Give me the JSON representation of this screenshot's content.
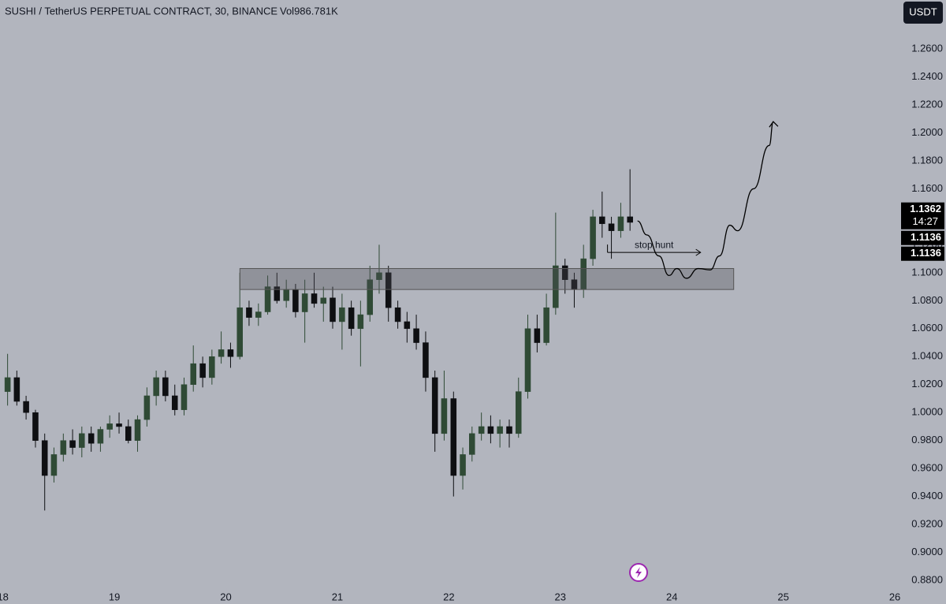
{
  "chart_data": {
    "type": "candlestick",
    "title": "SUSHI / TetherUS PERPETUAL CONTRACT, 30, BINANCE",
    "volume_label": "Vol986.781K",
    "currency": "USDT",
    "up_color": "#2f4a35",
    "down_color": "#0e0f12",
    "x": [
      18.042,
      18.125,
      18.208,
      18.292,
      18.375,
      18.458,
      18.542,
      18.625,
      18.708,
      18.792,
      18.875,
      18.958,
      19.042,
      19.125,
      19.208,
      19.292,
      19.375,
      19.458,
      19.542,
      19.625,
      19.708,
      19.792,
      19.875,
      19.958,
      20.042,
      20.125,
      20.208,
      20.292,
      20.375,
      20.458,
      20.542,
      20.625,
      20.708,
      20.792,
      20.875,
      20.958,
      21.042,
      21.125,
      21.208,
      21.292,
      21.375,
      21.458,
      21.542,
      21.625,
      21.708,
      21.792,
      21.875,
      21.958,
      22.042,
      22.125,
      22.208,
      22.292,
      22.375,
      22.458,
      22.542,
      22.625,
      22.708,
      22.792,
      22.875,
      22.958,
      23.042,
      23.125,
      23.208,
      23.292,
      23.375,
      23.458,
      23.542,
      23.625
    ],
    "open": [
      1.015,
      1.025,
      1.008,
      1.0,
      0.98,
      0.955,
      0.97,
      0.98,
      0.975,
      0.985,
      0.978,
      0.988,
      0.992,
      0.99,
      0.98,
      0.995,
      1.012,
      1.025,
      1.012,
      1.002,
      1.02,
      1.035,
      1.025,
      1.04,
      1.045,
      1.04,
      1.075,
      1.068,
      1.072,
      1.09,
      1.08,
      1.088,
      1.072,
      1.085,
      1.078,
      1.082,
      1.065,
      1.075,
      1.06,
      1.07,
      1.095,
      1.1,
      1.075,
      1.065,
      1.06,
      1.05,
      1.025,
      0.985,
      1.01,
      0.955,
      0.97,
      0.985,
      0.99,
      0.985,
      0.99,
      0.985,
      1.015,
      1.06,
      1.05,
      1.075,
      1.105,
      1.095,
      1.088,
      1.11,
      1.14,
      1.135,
      1.13,
      1.14
    ],
    "high": [
      1.042,
      1.03,
      1.012,
      1.002,
      0.985,
      0.975,
      0.985,
      0.988,
      0.99,
      0.99,
      0.99,
      0.998,
      1.0,
      0.995,
      0.998,
      1.018,
      1.03,
      1.03,
      1.02,
      1.025,
      1.048,
      1.04,
      1.045,
      1.058,
      1.05,
      1.1,
      1.08,
      1.078,
      1.098,
      1.1,
      1.095,
      1.092,
      1.095,
      1.1,
      1.09,
      1.09,
      1.085,
      1.08,
      1.08,
      1.105,
      1.12,
      1.105,
      1.08,
      1.072,
      1.07,
      1.058,
      1.03,
      1.03,
      1.015,
      0.975,
      0.99,
      1.0,
      0.998,
      0.995,
      0.995,
      1.025,
      1.07,
      1.07,
      1.085,
      1.143,
      1.11,
      1.1,
      1.12,
      1.145,
      1.158,
      1.14,
      1.15,
      1.174
    ],
    "low": [
      1.005,
      1.005,
      0.995,
      0.975,
      0.93,
      0.95,
      0.965,
      0.97,
      0.968,
      0.972,
      0.972,
      0.982,
      0.985,
      0.978,
      0.972,
      0.99,
      1.005,
      1.008,
      0.998,
      0.998,
      1.015,
      1.018,
      1.02,
      1.035,
      1.032,
      1.038,
      1.062,
      1.062,
      1.07,
      1.078,
      1.075,
      1.068,
      1.05,
      1.075,
      1.065,
      1.06,
      1.045,
      1.055,
      1.033,
      1.065,
      1.085,
      1.065,
      1.06,
      1.05,
      1.045,
      1.015,
      0.972,
      0.98,
      0.94,
      0.945,
      0.965,
      0.98,
      0.978,
      0.975,
      0.975,
      0.982,
      1.01,
      1.043,
      1.048,
      1.07,
      1.085,
      1.075,
      1.082,
      1.105,
      1.125,
      1.11,
      1.125,
      1.13
    ],
    "close": [
      1.025,
      1.008,
      1.0,
      0.98,
      0.955,
      0.97,
      0.98,
      0.975,
      0.985,
      0.978,
      0.988,
      0.992,
      0.99,
      0.98,
      0.995,
      1.012,
      1.025,
      1.012,
      1.002,
      1.02,
      1.035,
      1.025,
      1.04,
      1.045,
      1.04,
      1.075,
      1.068,
      1.072,
      1.09,
      1.08,
      1.088,
      1.072,
      1.085,
      1.078,
      1.082,
      1.065,
      1.075,
      1.06,
      1.07,
      1.095,
      1.1,
      1.075,
      1.065,
      1.06,
      1.05,
      1.025,
      0.985,
      1.01,
      0.955,
      0.97,
      0.985,
      0.99,
      0.985,
      0.99,
      0.985,
      1.015,
      1.06,
      1.05,
      1.075,
      1.105,
      1.095,
      1.088,
      1.11,
      1.14,
      1.135,
      1.13,
      1.14,
      1.136
    ],
    "xlim": [
      17.974,
      26.035
    ],
    "xticks": [
      18,
      19,
      20,
      21,
      22,
      23,
      24,
      25,
      26
    ],
    "ylim": [
      0.8744,
      1.295
    ],
    "yticks": [
      {
        "value": 0.88,
        "label": "0.8800"
      },
      {
        "value": 0.9,
        "label": "0.9000"
      },
      {
        "value": 0.92,
        "label": "0.9200"
      },
      {
        "value": 0.94,
        "label": "0.9400"
      },
      {
        "value": 0.96,
        "label": "0.9600"
      },
      {
        "value": 0.98,
        "label": "0.9800"
      },
      {
        "value": 1.0,
        "label": "1.0000"
      },
      {
        "value": 1.02,
        "label": "1.0200"
      },
      {
        "value": 1.04,
        "label": "1.0400"
      },
      {
        "value": 1.06,
        "label": "1.0600"
      },
      {
        "value": 1.08,
        "label": "1.0800"
      },
      {
        "value": 1.1,
        "label": "1.1000"
      },
      {
        "value": 1.12,
        "label": "1.1200"
      },
      {
        "value": 1.14,
        "label": "1.1400"
      },
      {
        "value": 1.16,
        "label": "1.1600"
      },
      {
        "value": 1.18,
        "label": "1.1800"
      },
      {
        "value": 1.2,
        "label": "1.2000"
      },
      {
        "value": 1.22,
        "label": "1.2200"
      },
      {
        "value": 1.24,
        "label": "1.2400"
      },
      {
        "value": 1.26,
        "label": "1.2600"
      }
    ],
    "zone": {
      "x": [
        20.126,
        24.555
      ],
      "y": [
        1.088,
        1.103
      ]
    },
    "projection": {
      "x": [
        23.692,
        23.777,
        23.884,
        23.975,
        24.046,
        24.131,
        24.237,
        24.343,
        24.428,
        24.52,
        24.591,
        24.733,
        24.874,
        24.91
      ],
      "y": [
        1.137,
        1.127,
        1.112,
        1.098,
        1.103,
        1.096,
        1.103,
        1.102,
        1.112,
        1.134,
        1.13,
        1.16,
        1.191,
        1.208
      ]
    },
    "stop_hunt": {
      "label": "stop hunt",
      "x": [
        23.423,
        24.258
      ],
      "y": 1.1145
    },
    "price_tags": [
      {
        "value": 1.1362,
        "countdown": "14:27"
      },
      {
        "value": 1.1136
      },
      {
        "value": 1.1136
      }
    ]
  }
}
